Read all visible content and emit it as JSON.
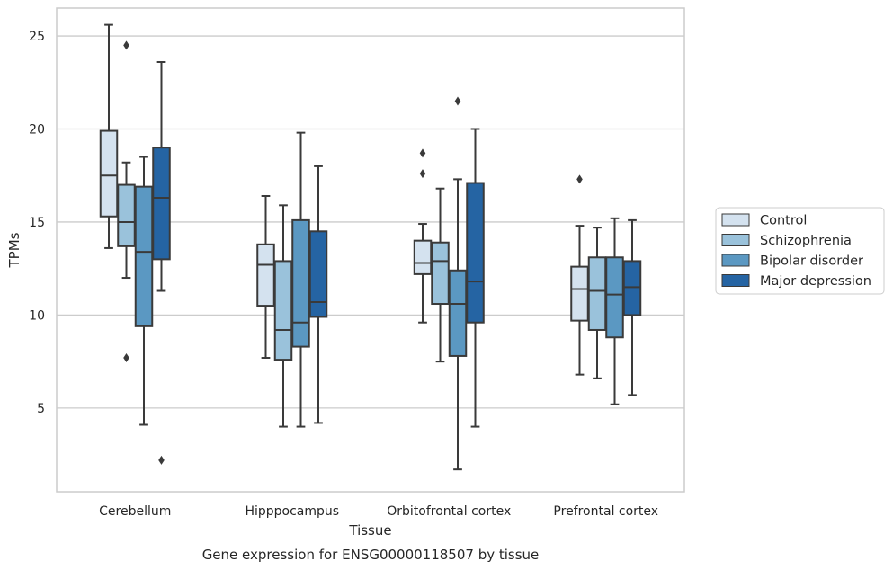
{
  "chart_data": {
    "type": "box",
    "ylabel": "TPMs",
    "xlabel": "Tissue",
    "caption": "Gene expression for ENSG00000118507 by tissue",
    "ylim": [
      0.5,
      26.5
    ],
    "yticks": [
      5,
      10,
      15,
      20,
      25
    ],
    "grid": "horizontal",
    "legend_position": "right",
    "categories": [
      "Cerebellum",
      "Hipppocampus",
      "Orbitofrontal cortex",
      "Prefrontal cortex"
    ],
    "series": [
      {
        "name": "Control",
        "color": "#d4e2ef",
        "boxes": [
          {
            "whislo": 13.6,
            "q1": 15.3,
            "med": 17.5,
            "q3": 19.9,
            "whishi": 25.6,
            "fliers": []
          },
          {
            "whislo": 7.7,
            "q1": 10.5,
            "med": 12.7,
            "q3": 13.8,
            "whishi": 16.4,
            "fliers": []
          },
          {
            "whislo": 9.6,
            "q1": 12.2,
            "med": 12.8,
            "q3": 14.0,
            "whishi": 14.9,
            "fliers": [
              17.6,
              18.7
            ]
          },
          {
            "whislo": 6.8,
            "q1": 9.7,
            "med": 11.4,
            "q3": 12.6,
            "whishi": 14.8,
            "fliers": [
              17.3
            ]
          }
        ]
      },
      {
        "name": "Schizophrenia",
        "color": "#9ac2db",
        "boxes": [
          {
            "whislo": 12.0,
            "q1": 13.7,
            "med": 15.0,
            "q3": 17.0,
            "whishi": 18.2,
            "fliers": [
              7.7,
              24.5
            ]
          },
          {
            "whislo": 4.0,
            "q1": 7.6,
            "med": 9.2,
            "q3": 12.9,
            "whishi": 15.9,
            "fliers": []
          },
          {
            "whislo": 7.5,
            "q1": 10.6,
            "med": 12.9,
            "q3": 13.9,
            "whishi": 16.8,
            "fliers": []
          },
          {
            "whislo": 6.6,
            "q1": 9.2,
            "med": 11.3,
            "q3": 13.1,
            "whishi": 14.7,
            "fliers": []
          }
        ]
      },
      {
        "name": "Bipolar disorder",
        "color": "#5b98c2",
        "boxes": [
          {
            "whislo": 4.1,
            "q1": 9.4,
            "med": 13.4,
            "q3": 16.9,
            "whishi": 18.5,
            "fliers": []
          },
          {
            "whislo": 4.0,
            "q1": 8.3,
            "med": 9.6,
            "q3": 15.1,
            "whishi": 19.8,
            "fliers": []
          },
          {
            "whislo": 1.7,
            "q1": 7.8,
            "med": 10.6,
            "q3": 12.4,
            "whishi": 17.3,
            "fliers": [
              21.5
            ]
          },
          {
            "whislo": 5.2,
            "q1": 8.8,
            "med": 11.1,
            "q3": 13.1,
            "whishi": 15.2,
            "fliers": []
          }
        ]
      },
      {
        "name": "Major depression",
        "color": "#2564a3",
        "boxes": [
          {
            "whislo": 11.3,
            "q1": 13.0,
            "med": 16.3,
            "q3": 19.0,
            "whishi": 23.6,
            "fliers": [
              2.2
            ]
          },
          {
            "whislo": 4.2,
            "q1": 9.9,
            "med": 10.7,
            "q3": 14.5,
            "whishi": 18.0,
            "fliers": []
          },
          {
            "whislo": 4.0,
            "q1": 9.6,
            "med": 11.8,
            "q3": 17.1,
            "whishi": 20.0,
            "fliers": []
          },
          {
            "whislo": 5.7,
            "q1": 10.0,
            "med": 11.5,
            "q3": 12.9,
            "whishi": 15.1,
            "fliers": []
          }
        ]
      }
    ],
    "colors": {
      "edge": "#3a3a3a",
      "grid": "#cccccc",
      "spine": "#cccccc",
      "text": "#262626"
    }
  }
}
